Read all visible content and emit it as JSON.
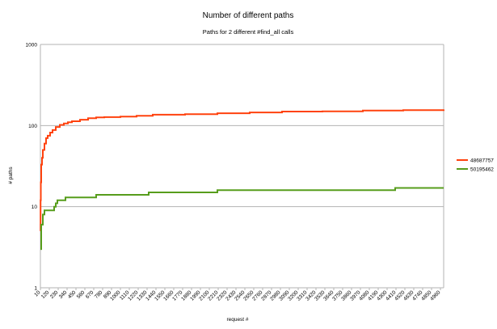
{
  "chart_data": {
    "type": "line",
    "title": "Number of different paths",
    "subtitle": "Paths for 2 different #find_all calls",
    "xlabel": "request #",
    "ylabel": "# paths",
    "yscale": "log",
    "ylim": [
      1,
      1000
    ],
    "yticks": [
      "1",
      "10",
      "100",
      "1000"
    ],
    "xlim": [
      10,
      5000
    ],
    "xticks": [
      "10",
      "120",
      "230",
      "340",
      "450",
      "560",
      "670",
      "780",
      "890",
      "1000",
      "1110",
      "1220",
      "1330",
      "1440",
      "1550",
      "1660",
      "1770",
      "1880",
      "1990",
      "2100",
      "2210",
      "2320",
      "2430",
      "2540",
      "2650",
      "2760",
      "2870",
      "2980",
      "3090",
      "3200",
      "3310",
      "3420",
      "3530",
      "3640",
      "3750",
      "3860",
      "3970",
      "4080",
      "4190",
      "4300",
      "4410",
      "4520",
      "4630",
      "4740",
      "4850",
      "4960"
    ],
    "grid": "horizontal",
    "legend_position": "right",
    "series": [
      {
        "name": "48687757",
        "color": "#ff420e",
        "x": [
          10,
          12,
          15,
          20,
          30,
          40,
          60,
          80,
          100,
          130,
          160,
          200,
          250,
          300,
          350,
          400,
          500,
          600,
          700,
          800,
          1000,
          1200,
          1400,
          1800,
          2200,
          2600,
          3000,
          3500,
          4000,
          4500,
          5000
        ],
        "y": [
          5,
          12,
          20,
          33,
          40,
          50,
          60,
          70,
          75,
          82,
          88,
          96,
          102,
          106,
          110,
          113,
          118,
          123,
          126,
          127,
          129,
          132,
          136,
          138,
          142,
          145,
          149,
          150,
          153,
          155,
          158
        ]
      },
      {
        "name": "50195462",
        "color": "#579d1c",
        "x": [
          10,
          20,
          40,
          60,
          180,
          200,
          220,
          320,
          700,
          1350,
          2200,
          4400,
          5000
        ],
        "y": [
          3,
          6,
          8,
          9,
          10,
          11,
          12,
          13,
          14,
          15,
          16,
          17,
          17
        ]
      }
    ]
  }
}
